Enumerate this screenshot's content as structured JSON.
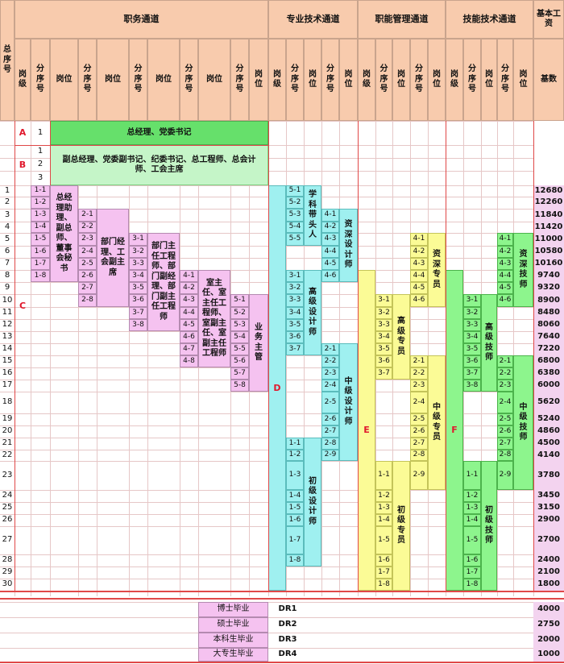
{
  "header": {
    "total_no": "总序号",
    "zhiwu_title": "职务通道",
    "zhuanye_title": "专业技术通道",
    "zhineng_title": "职能管理通道",
    "jineng_title": "技能技术通道",
    "salary_title": "基本工资",
    "gangji": "岗级",
    "fenxuhao": "分序号",
    "gangwei": "岗位",
    "jishu": "基数"
  },
  "levels": {
    "A": "A",
    "B": "B",
    "C": "C",
    "D": "D",
    "E": "E",
    "F": "F"
  },
  "a_row": {
    "num": "1",
    "label": "总经理、党委书记"
  },
  "b_row": {
    "nums": [
      "1",
      "2",
      "3"
    ],
    "label": "副总经理、党委副书记、纪委书记、总工程师、总会计师、工会主席"
  },
  "rows": [
    "1",
    "2",
    "3",
    "4",
    "5",
    "6",
    "7",
    "8",
    "9",
    "10",
    "11",
    "12",
    "13",
    "14",
    "15",
    "16",
    "17",
    "18",
    "19",
    "20",
    "21",
    "22",
    "23",
    "24",
    "25",
    "26",
    "27",
    "28",
    "29",
    "30"
  ],
  "salaries": [
    "12680",
    "12260",
    "11840",
    "11420",
    "11000",
    "10580",
    "10160",
    "9740",
    "9320",
    "8900",
    "8480",
    "8060",
    "7640",
    "7220",
    "6800",
    "6380",
    "6000",
    "5620",
    "5240",
    "4860",
    "4500",
    "4140",
    "3780",
    "3450",
    "3150",
    "2900",
    "2700",
    "2400",
    "2100",
    "1800"
  ],
  "zhiwu": [
    {
      "codes": [
        "1-1",
        "1-2",
        "1-3",
        "1-4",
        "1-5",
        "1-6",
        "1-7",
        "1-8"
      ],
      "title": "总经理助理、副总师、董事会秘书"
    },
    {
      "codes": [
        "2-1",
        "2-2",
        "2-3",
        "2-4",
        "2-5",
        "2-6",
        "2-7",
        "2-8"
      ],
      "title": "部门经理、工会副主席"
    },
    {
      "codes": [
        "3-1",
        "3-2",
        "3-3",
        "3-4",
        "3-5",
        "3-6",
        "3-7",
        "3-8"
      ],
      "title": "部门主任工程师、部门副经理、部门副主任工程师"
    },
    {
      "codes": [
        "4-1",
        "4-2",
        "4-3",
        "4-4",
        "4-5",
        "4-6",
        "4-7",
        "4-8"
      ],
      "title": "室主任、室主任工程师、室副主任、室副主任工程师"
    },
    {
      "codes": [
        "5-1",
        "5-2",
        "5-3",
        "5-4",
        "5-5",
        "5-6",
        "5-7",
        "5-8"
      ],
      "title": "业务主管"
    }
  ],
  "zhuanye": {
    "g5": {
      "codes": [
        "5-1",
        "5-2",
        "5-3",
        "5-4",
        "5-5"
      ],
      "title": "学科带头人"
    },
    "g4": {
      "codes": [
        "4-1",
        "4-2",
        "4-3",
        "4-4",
        "4-5",
        "4-6"
      ],
      "title": "资深设计师"
    },
    "g3": {
      "codes": [
        "3-1",
        "3-2",
        "3-3",
        "3-4",
        "3-5",
        "3-6",
        "3-7"
      ],
      "title": "高级设计师"
    },
    "g2": {
      "codes": [
        "2-1",
        "2-2",
        "2-3",
        "2-4",
        "2-5",
        "2-6",
        "2-7",
        "2-8",
        "2-9"
      ],
      "title": "中级设计师"
    },
    "g1": {
      "codes": [
        "1-1",
        "1-2",
        "1-3",
        "1-4",
        "1-5",
        "1-6",
        "1-7",
        "1-8"
      ],
      "title": "初级设计师"
    }
  },
  "zhineng": {
    "g4": {
      "codes": [
        "4-1",
        "4-2",
        "4-3",
        "4-4",
        "4-5",
        "4-6"
      ],
      "title": "资深专员"
    },
    "g3": {
      "codes": [
        "3-1",
        "3-2",
        "3-3",
        "3-4",
        "3-5",
        "3-6",
        "3-7"
      ],
      "title": "高级专员"
    },
    "g2": {
      "codes": [
        "2-1",
        "2-2",
        "2-3",
        "2-4",
        "2-5",
        "2-6",
        "2-7",
        "2-8",
        "2-9"
      ],
      "title": "中级专员"
    },
    "g1": {
      "codes": [
        "1-1",
        "1-2",
        "1-3",
        "1-4",
        "1-5",
        "1-6",
        "1-7",
        "1-8"
      ],
      "title": "初级专员"
    }
  },
  "jineng": {
    "g4": {
      "codes": [
        "4-1",
        "4-2",
        "4-3",
        "4-4",
        "4-5",
        "4-6"
      ],
      "title": "资深技师"
    },
    "g3": {
      "codes": [
        "3-1",
        "3-2",
        "3-3",
        "3-4",
        "3-5",
        "3-6",
        "3-7",
        "3-8"
      ],
      "title": "高级技师"
    },
    "g2": {
      "codes": [
        "2-1",
        "2-2",
        "2-3",
        "2-4",
        "2-5",
        "2-6",
        "2-7",
        "2-8",
        "2-9"
      ],
      "title": "中级技师"
    },
    "g1": {
      "codes": [
        "1-1",
        "1-2",
        "1-3",
        "1-4",
        "1-5",
        "1-6",
        "1-7",
        "1-8"
      ],
      "title": "初级技师"
    }
  },
  "degrees": [
    {
      "name": "博士毕业",
      "code": "DR1",
      "salary": "4000"
    },
    {
      "name": "硕士毕业",
      "code": "DR2",
      "salary": "2750"
    },
    {
      "name": "本科生毕业",
      "code": "DR3",
      "salary": "2000"
    },
    {
      "name": "大专生毕业",
      "code": "DR4",
      "salary": "1000"
    }
  ],
  "colors": {
    "header_bg": "#f8cbad",
    "level_red": "#e0192d",
    "a_green": "#66e06b",
    "b_green": "#c5f5c8",
    "pink": "#f5c2f0",
    "cyan": "#9ff0f0",
    "yellow": "#fbfb96",
    "green": "#8df58d",
    "salary_bg": "#f3d3ef",
    "grid": "#e6c7c7"
  }
}
